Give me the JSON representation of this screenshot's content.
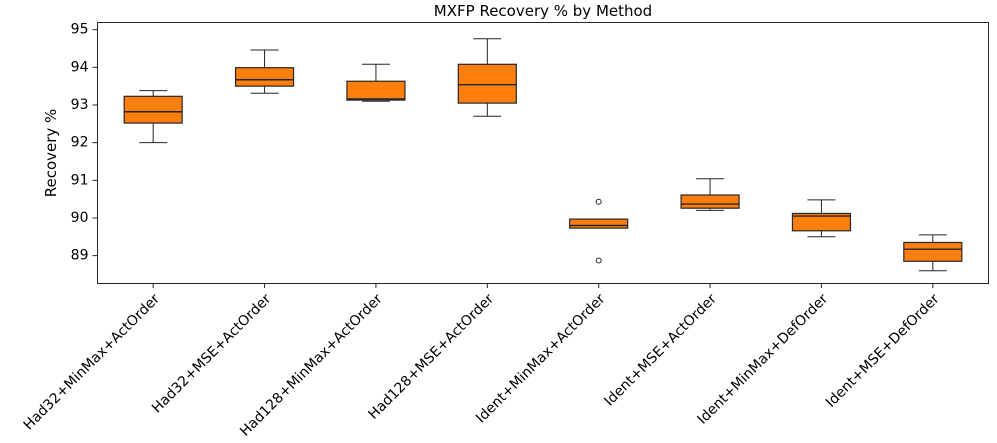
{
  "figure": {
    "background": "#ffffff"
  },
  "chart_data": {
    "type": "boxplot",
    "title": "MXFP Recovery % by Method",
    "xlabel": "",
    "ylabel": "Recovery %",
    "ylim": [
      88.26,
      95.19
    ],
    "yticks": [
      89,
      90,
      91,
      92,
      93,
      94,
      95
    ],
    "grid": false,
    "legend": null,
    "categories": [
      "Had32+MinMax+ActOrder",
      "Had32+MSE+ActOrder",
      "Had128+MinMax+ActOrder",
      "Had128+MSE+ActOrder",
      "Ident+MinMax+ActOrder",
      "Ident+MSE+ActOrder",
      "Ident+MinMax+DefOrder",
      "Ident+MSE+DefOrder"
    ],
    "boxes": [
      {
        "label": "Had32+MinMax+ActOrder",
        "whislo": 92.0,
        "q1": 92.52,
        "med": 92.82,
        "q3": 93.23,
        "whishi": 93.38,
        "outliers": []
      },
      {
        "label": "Had32+MSE+ActOrder",
        "whislo": 93.31,
        "q1": 93.5,
        "med": 93.67,
        "q3": 93.99,
        "whishi": 94.46,
        "outliers": []
      },
      {
        "label": "Had128+MinMax+ActOrder",
        "whislo": 93.1,
        "q1": 93.13,
        "med": 93.16,
        "q3": 93.63,
        "whishi": 94.08,
        "outliers": []
      },
      {
        "label": "Had128+MSE+ActOrder",
        "whislo": 92.7,
        "q1": 93.05,
        "med": 93.54,
        "q3": 94.08,
        "whishi": 94.76,
        "outliers": []
      },
      {
        "label": "Ident+MinMax+ActOrder",
        "whislo": 89.73,
        "q1": 89.73,
        "med": 89.8,
        "q3": 89.97,
        "whishi": 89.97,
        "outliers": [
          90.43,
          88.87
        ]
      },
      {
        "label": "Ident+MSE+ActOrder",
        "whislo": 90.2,
        "q1": 90.26,
        "med": 90.37,
        "q3": 90.61,
        "whishi": 91.04,
        "outliers": []
      },
      {
        "label": "Ident+MinMax+DefOrder",
        "whislo": 89.5,
        "q1": 89.66,
        "med": 90.05,
        "q3": 90.12,
        "whishi": 90.48,
        "outliers": []
      },
      {
        "label": "Ident+MSE+DefOrder",
        "whislo": 88.6,
        "q1": 88.85,
        "med": 89.17,
        "q3": 89.35,
        "whishi": 89.55,
        "outliers": []
      }
    ],
    "colors": {
      "box_fill": "#ff7f0e",
      "line": "#262626",
      "text": "#000000"
    }
  }
}
